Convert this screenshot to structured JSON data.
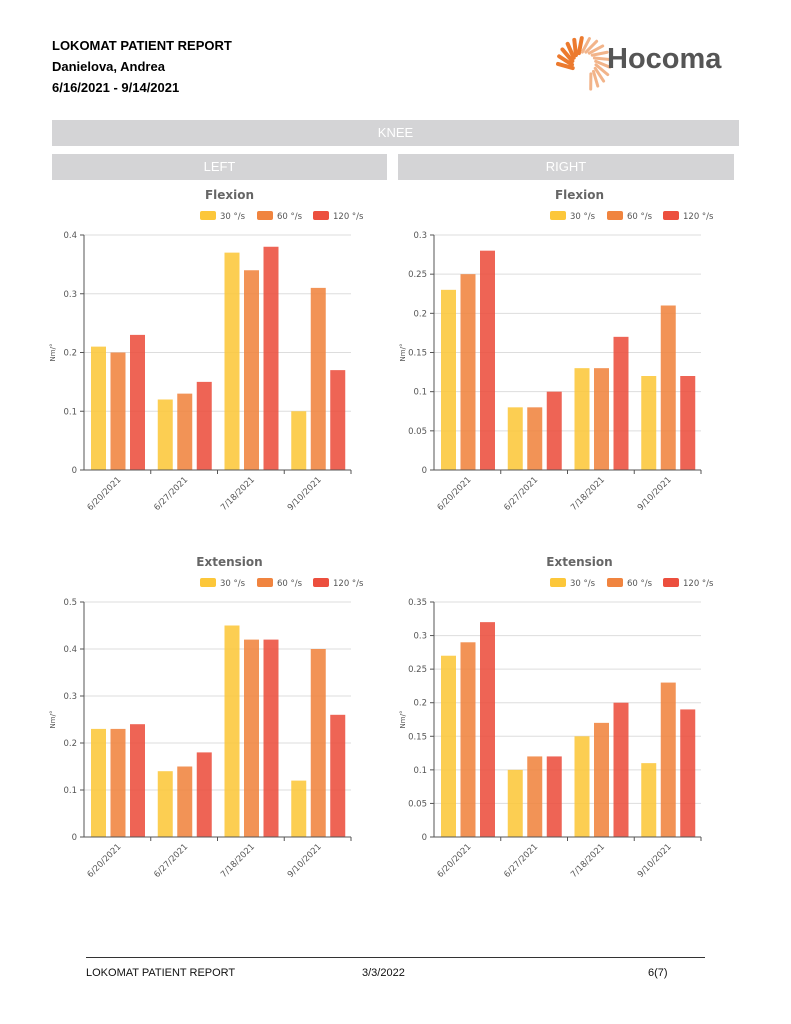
{
  "header": {
    "title": "LOKOMAT PATIENT REPORT",
    "patient": "Danielova, Andrea",
    "date_range": "6/16/2021 - 9/14/2021",
    "logo_text": "Hocoma"
  },
  "section": {
    "title": "KNEE",
    "left": "LEFT",
    "right": "RIGHT"
  },
  "colors": {
    "s30": "#fcc73a",
    "s60": "#f0843f",
    "s120": "#ec4f3e",
    "band": "#d4d4d6"
  },
  "chart_data": [
    {
      "id": "left-flexion",
      "type": "bar",
      "title": "Flexion",
      "ylabel": "Nm/°",
      "categories": [
        "6/20/2021",
        "6/27/2021",
        "7/18/2021",
        "9/10/2021"
      ],
      "ylim": [
        0,
        0.4
      ],
      "yticks": [
        "0",
        "0.1",
        "0.2",
        "0.3",
        "0.4"
      ],
      "ytick_values": [
        0,
        0.1,
        0.2,
        0.3,
        0.4
      ],
      "series": [
        {
          "name": "30 °/s",
          "values": [
            0.21,
            0.12,
            0.37,
            0.1
          ]
        },
        {
          "name": "60 °/s",
          "values": [
            0.2,
            0.13,
            0.34,
            0.31
          ]
        },
        {
          "name": "120 °/s",
          "values": [
            0.23,
            0.15,
            0.38,
            0.17
          ]
        }
      ],
      "legend": "top-right",
      "grid": true
    },
    {
      "id": "right-flexion",
      "type": "bar",
      "title": "Flexion",
      "ylabel": "Nm/°",
      "categories": [
        "6/20/2021",
        "6/27/2021",
        "7/18/2021",
        "9/10/2021"
      ],
      "ylim": [
        0,
        0.3
      ],
      "yticks": [
        "0",
        "0.05",
        "0.1",
        "0.15",
        "0.2",
        "0.25",
        "0.3"
      ],
      "ytick_values": [
        0,
        0.05,
        0.1,
        0.15,
        0.2,
        0.25,
        0.3
      ],
      "series": [
        {
          "name": "30 °/s",
          "values": [
            0.23,
            0.08,
            0.13,
            0.12
          ]
        },
        {
          "name": "60 °/s",
          "values": [
            0.25,
            0.08,
            0.13,
            0.21
          ]
        },
        {
          "name": "120 °/s",
          "values": [
            0.28,
            0.1,
            0.17,
            0.12
          ]
        }
      ],
      "legend": "top-right",
      "grid": true
    },
    {
      "id": "left-extension",
      "type": "bar",
      "title": "Extension",
      "ylabel": "Nm/°",
      "categories": [
        "6/20/2021",
        "6/27/2021",
        "7/18/2021",
        "9/10/2021"
      ],
      "ylim": [
        0,
        0.5
      ],
      "yticks": [
        "0",
        "0.1",
        "0.2",
        "0.3",
        "0.4",
        "0.5"
      ],
      "ytick_values": [
        0,
        0.1,
        0.2,
        0.3,
        0.4,
        0.5
      ],
      "series": [
        {
          "name": "30 °/s",
          "values": [
            0.23,
            0.14,
            0.45,
            0.12
          ]
        },
        {
          "name": "60 °/s",
          "values": [
            0.23,
            0.15,
            0.42,
            0.4
          ]
        },
        {
          "name": "120 °/s",
          "values": [
            0.24,
            0.18,
            0.42,
            0.26
          ]
        }
      ],
      "legend": "top-right",
      "grid": true
    },
    {
      "id": "right-extension",
      "type": "bar",
      "title": "Extension",
      "ylabel": "Nm/°",
      "categories": [
        "6/20/2021",
        "6/27/2021",
        "7/18/2021",
        "9/10/2021"
      ],
      "ylim": [
        0,
        0.35
      ],
      "yticks": [
        "0",
        "0.05",
        "0.1",
        "0.15",
        "0.2",
        "0.25",
        "0.3",
        "0.35"
      ],
      "ytick_values": [
        0,
        0.05,
        0.1,
        0.15,
        0.2,
        0.25,
        0.3,
        0.35
      ],
      "series": [
        {
          "name": "30 °/s",
          "values": [
            0.27,
            0.1,
            0.15,
            0.11
          ]
        },
        {
          "name": "60 °/s",
          "values": [
            0.29,
            0.12,
            0.17,
            0.23
          ]
        },
        {
          "name": "120 °/s",
          "values": [
            0.32,
            0.12,
            0.2,
            0.19
          ]
        }
      ],
      "legend": "top-right",
      "grid": true
    }
  ],
  "footer": {
    "title": "LOKOMAT PATIENT REPORT",
    "date": "3/3/2022",
    "page": "6(7)"
  }
}
